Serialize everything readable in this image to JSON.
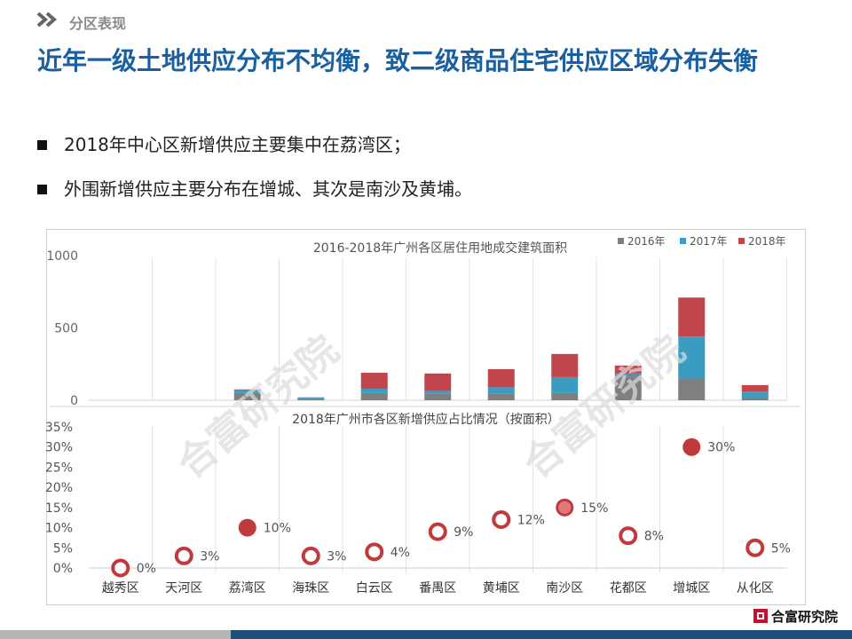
{
  "header": {
    "section_label": "分区表现",
    "icon": "double-chevron-right-icon"
  },
  "title": "近年一级土地供应分布不均衡，致二级商品住宅供应区域分布失衡",
  "bullets": [
    "2018年中心区新增供应主要集中在荔湾区；",
    "外围新增供应主要分布在增城、其次是南沙及黄埔。"
  ],
  "watermark": "合富研究院",
  "logo": {
    "text": "合富研究院",
    "color": "#c8102e"
  },
  "colors": {
    "title": "#1a5fa0",
    "s2016": "#7f7f7f",
    "s2017": "#3b9cc2",
    "s2018": "#c0464b",
    "dark_dot": "#c0393b",
    "mid_dot": "#e07a7a"
  },
  "chart_data": [
    {
      "type": "bar",
      "stacked": true,
      "title": "2016-2018年广州各区居住用地成交建筑面积",
      "categories": [
        "越秀区",
        "天河区",
        "荔湾区",
        "海珠区",
        "白云区",
        "番禺区",
        "黄埔区",
        "南沙区",
        "花都区",
        "增城区",
        "从化区"
      ],
      "series": [
        {
          "name": "2016年",
          "color": "#7f7f7f",
          "values": [
            0,
            0,
            50,
            10,
            50,
            45,
            45,
            50,
            165,
            150,
            15
          ]
        },
        {
          "name": "2017年",
          "color": "#3b9cc2",
          "values": [
            0,
            0,
            20,
            8,
            30,
            20,
            45,
            110,
            20,
            290,
            45
          ]
        },
        {
          "name": "2018年",
          "color": "#c0464b",
          "values": [
            0,
            0,
            5,
            2,
            110,
            120,
            125,
            160,
            55,
            270,
            45
          ]
        }
      ],
      "yticks": [
        "0",
        "500",
        "1000"
      ],
      "ylim": [
        0,
        1000
      ],
      "legend": "top-right",
      "grid": "vertical category separators"
    },
    {
      "type": "scatter",
      "title": "2018年广州市各区新增供应占比情况（按面积）",
      "categories": [
        "越秀区",
        "天河区",
        "荔湾区",
        "海珠区",
        "白云区",
        "番禺区",
        "黄埔区",
        "南沙区",
        "花都区",
        "增城区",
        "从化区"
      ],
      "values": [
        0,
        3,
        10,
        3,
        4,
        9,
        12,
        15,
        8,
        30,
        5
      ],
      "labels": [
        "0%",
        "3%",
        "10%",
        "3%",
        "4%",
        "9%",
        "12%",
        "15%",
        "8%",
        "30%",
        "5%"
      ],
      "styles": [
        "ring",
        "ring",
        "filled",
        "ring",
        "ring",
        "ring",
        "ring",
        "mid",
        "ring",
        "filled",
        "ring"
      ],
      "yticks": [
        "0%",
        "5%",
        "10%",
        "15%",
        "20%",
        "25%",
        "30%",
        "35%"
      ],
      "ylim": [
        0,
        35
      ],
      "grid": "vertical category separators"
    }
  ]
}
